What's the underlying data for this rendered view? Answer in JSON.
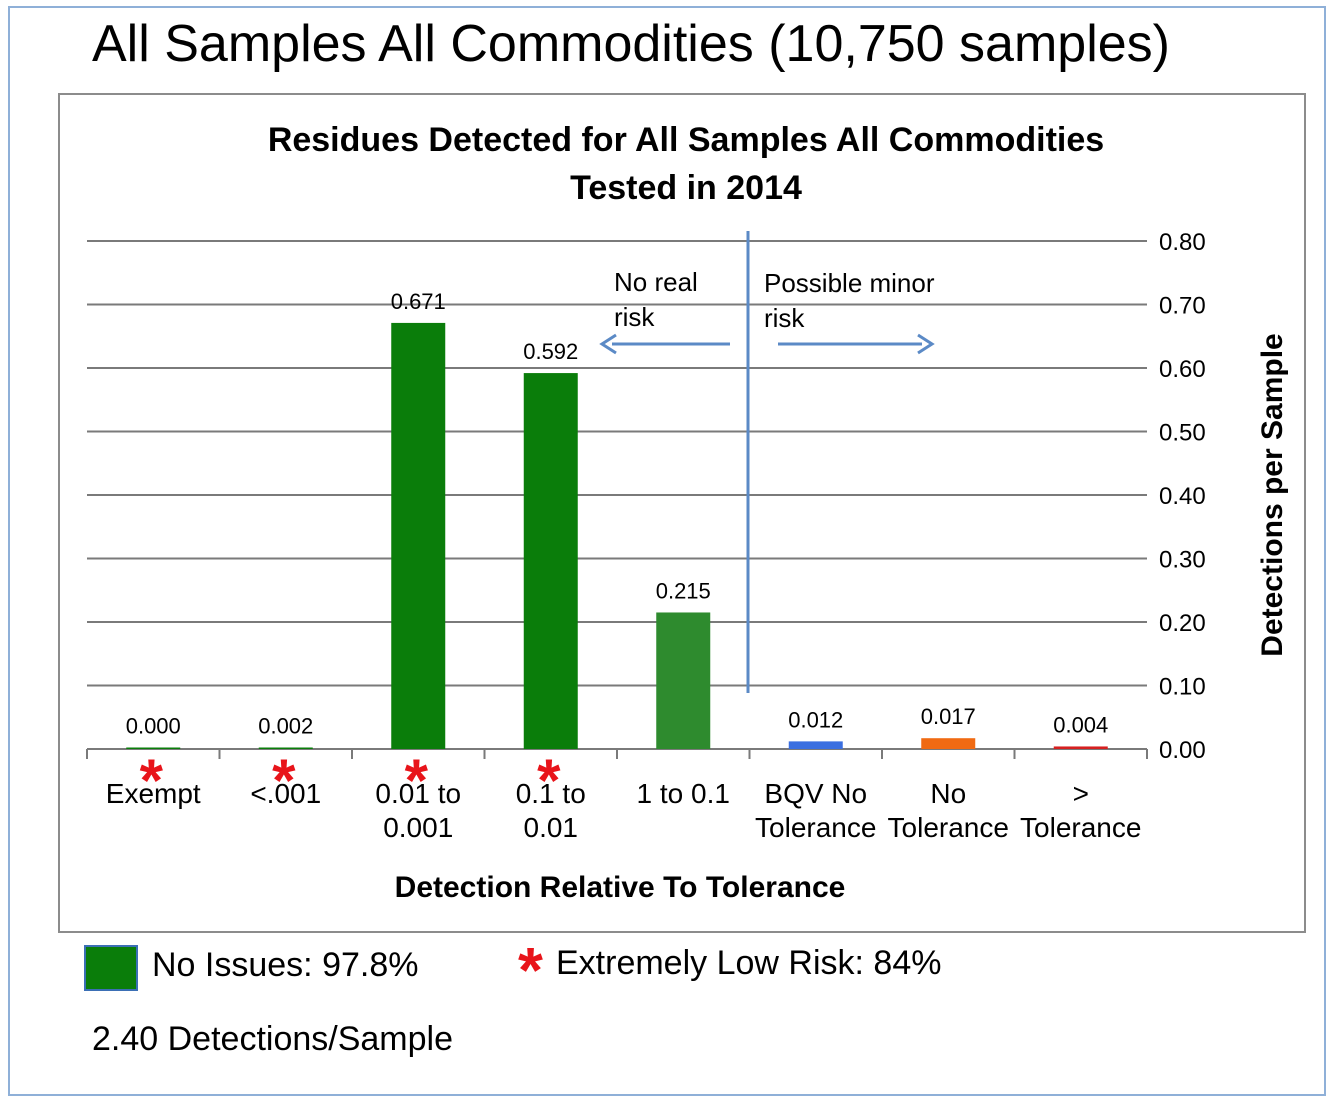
{
  "slide_title": "All Samples All Commodities (10,750 samples)",
  "legend": {
    "no_issues_label": "No Issues: 97.8%",
    "no_issues_color": "#0a7d0a",
    "low_risk_marker": "*",
    "low_risk_label": "Extremely Low Risk: 84%",
    "low_risk_color": "#e8141a"
  },
  "footnote": "2.40 Detections/Sample",
  "chart_data": {
    "type": "bar",
    "title_lines": [
      "Residues Detected for All Samples All Commodities",
      "Tested in 2014"
    ],
    "xlabel": "Detection Relative To Tolerance",
    "ylabel": "Detections per Sample",
    "ylim": [
      0,
      0.8
    ],
    "y_ticks": [
      "0.00",
      "0.10",
      "0.20",
      "0.30",
      "0.40",
      "0.50",
      "0.60",
      "0.70",
      "0.80"
    ],
    "y_axis_side": "right",
    "grid": true,
    "categories": [
      [
        "Exempt"
      ],
      [
        "<.001"
      ],
      [
        "0.01 to",
        "0.001"
      ],
      [
        "0.1 to",
        "0.01"
      ],
      [
        "1 to 0.1"
      ],
      [
        "BQV No",
        "Tolerance"
      ],
      [
        "No",
        "Tolerance"
      ],
      [
        ">",
        "Tolerance"
      ]
    ],
    "values": [
      0.0,
      0.002,
      0.671,
      0.592,
      0.215,
      0.012,
      0.017,
      0.004
    ],
    "value_labels": [
      "0.000",
      "0.002",
      "0.671",
      "0.592",
      "0.215",
      "0.012",
      "0.017",
      "0.004"
    ],
    "bar_colors": [
      "#0a7d0a",
      "#0a7d0a",
      "#0a7d0a",
      "#0a7d0a",
      "#2e8b2e",
      "#3a6fe0",
      "#f06a12",
      "#d62020"
    ],
    "low_risk_marked": [
      true,
      true,
      true,
      true,
      false,
      false,
      false,
      false
    ],
    "annotations": {
      "left_text": [
        "No real",
        "risk"
      ],
      "right_text": [
        "Possible minor",
        "risk"
      ],
      "divider_color": "#5b8ac6"
    }
  }
}
